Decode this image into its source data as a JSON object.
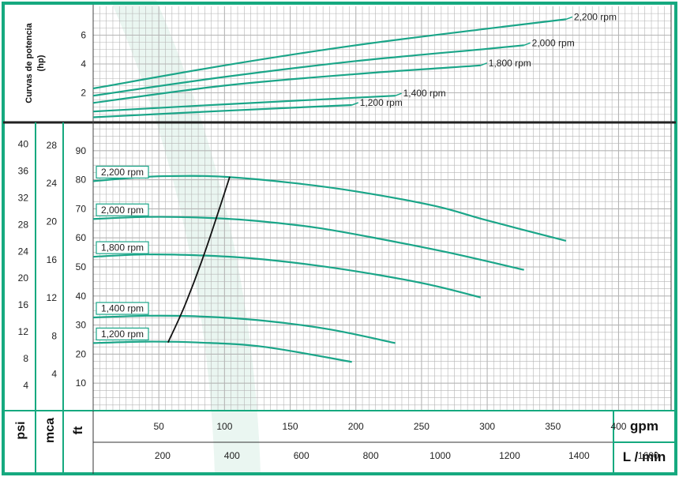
{
  "chart_data": [
    {
      "type": "line",
      "panel": "power",
      "ylabel_lines": [
        "Curvas de potencia",
        "(hp)"
      ],
      "yticks": [
        2,
        4,
        6
      ],
      "ylim": [
        0,
        8
      ],
      "x_unit": "gpm",
      "xlim": [
        0,
        440
      ],
      "series": [
        {
          "name": "2,200 rpm",
          "x": [
            0,
            100,
            200,
            300,
            360
          ],
          "y": [
            2.3,
            3.9,
            5.3,
            6.45,
            7.1
          ]
        },
        {
          "name": "2,000 rpm",
          "x": [
            0,
            100,
            200,
            300,
            328
          ],
          "y": [
            1.8,
            3.1,
            4.2,
            5.05,
            5.3
          ]
        },
        {
          "name": "1,800 rpm",
          "x": [
            0,
            100,
            200,
            295
          ],
          "y": [
            1.3,
            2.5,
            3.3,
            3.9
          ]
        },
        {
          "name": "1,400 rpm",
          "x": [
            0,
            100,
            230
          ],
          "y": [
            0.7,
            1.2,
            1.8
          ]
        },
        {
          "name": "1,200 rpm",
          "x": [
            0,
            100,
            197
          ],
          "y": [
            0.3,
            0.75,
            1.15
          ]
        }
      ]
    },
    {
      "type": "line",
      "panel": "head",
      "y_units": [
        "psi",
        "mca",
        "ft"
      ],
      "psi_ticks": [
        "40",
        "36",
        "32",
        "28",
        "24",
        "20",
        "16",
        "12",
        "8",
        "4"
      ],
      "mca_ticks": [
        "28",
        "24",
        "20",
        "16",
        "12",
        "8",
        "4"
      ],
      "ft_ticks": [
        "90",
        "80",
        "70",
        "60",
        "50",
        "40",
        "30",
        "20",
        "10"
      ],
      "ylim_ft": [
        0,
        100
      ],
      "x_labels": [
        "gpm",
        "L / min"
      ],
      "gpm_ticks": [
        "50",
        "100",
        "150",
        "200",
        "250",
        "300",
        "350",
        "400"
      ],
      "lmin_ticks": [
        "200",
        "400",
        "600",
        "800",
        "1000",
        "1200",
        "1400",
        "1600"
      ],
      "xlim_gpm": [
        0,
        440
      ],
      "series": [
        {
          "name": "2,200 rpm",
          "x": [
            0,
            40,
            70,
            100,
            150,
            200,
            260,
            300,
            360
          ],
          "y": [
            79.5,
            81,
            81.3,
            81,
            79,
            76,
            71,
            66,
            59
          ]
        },
        {
          "name": "2,000 rpm",
          "x": [
            0,
            40,
            80,
            120,
            170,
            220,
            270,
            328
          ],
          "y": [
            66.5,
            67.2,
            67,
            66,
            63.5,
            59.5,
            55,
            49
          ]
        },
        {
          "name": "1,800 rpm",
          "x": [
            0,
            40,
            80,
            120,
            170,
            220,
            260,
            295
          ],
          "y": [
            53.5,
            54.3,
            54,
            53,
            50.5,
            47,
            43.5,
            39.5
          ]
        },
        {
          "name": "1,400 rpm",
          "x": [
            0,
            40,
            80,
            130,
            180,
            230
          ],
          "y": [
            32.6,
            33.2,
            33,
            31.5,
            28.5,
            23.8
          ]
        },
        {
          "name": "1,200 rpm",
          "x": [
            0,
            40,
            80,
            130,
            197
          ],
          "y": [
            23.8,
            24.3,
            24,
            22.5,
            17.3
          ]
        }
      ],
      "efficiency_line": {
        "x": [
          57,
          70,
          85,
          104
        ],
        "y": [
          24,
          37,
          55,
          81
        ]
      }
    }
  ],
  "colors": {
    "frame": "#16a97f",
    "curve": "#1aa588",
    "grid": "#b5b5b5",
    "watermark": "#eaf6f1",
    "text": "#222222"
  }
}
